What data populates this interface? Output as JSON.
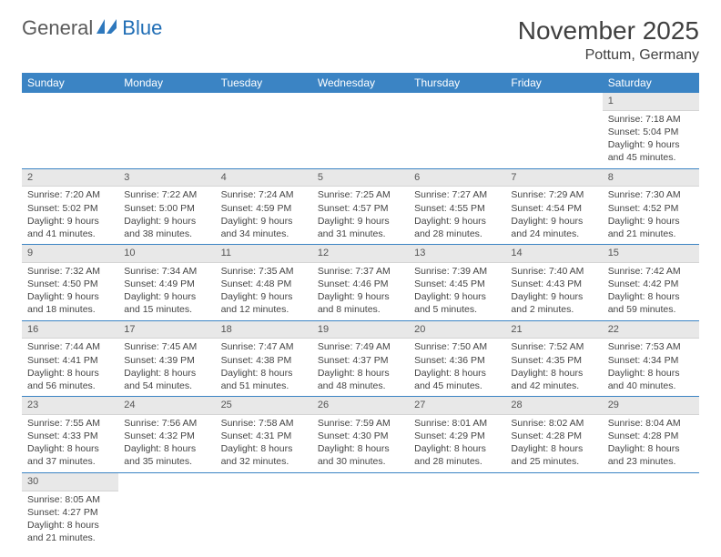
{
  "logo": {
    "general": "General",
    "blue": "Blue"
  },
  "title": "November 2025",
  "location": "Pottum, Germany",
  "colors": {
    "header_bg": "#3b84c4",
    "header_text": "#ffffff",
    "daynum_bg": "#e8e8e8",
    "row_border": "#3b84c4",
    "logo_gray": "#5a5a5a",
    "logo_blue": "#1f6db5"
  },
  "weekdays": [
    "Sunday",
    "Monday",
    "Tuesday",
    "Wednesday",
    "Thursday",
    "Friday",
    "Saturday"
  ],
  "weeks": [
    [
      null,
      null,
      null,
      null,
      null,
      null,
      {
        "n": "1",
        "sr": "Sunrise: 7:18 AM",
        "ss": "Sunset: 5:04 PM",
        "dl": "Daylight: 9 hours and 45 minutes."
      }
    ],
    [
      {
        "n": "2",
        "sr": "Sunrise: 7:20 AM",
        "ss": "Sunset: 5:02 PM",
        "dl": "Daylight: 9 hours and 41 minutes."
      },
      {
        "n": "3",
        "sr": "Sunrise: 7:22 AM",
        "ss": "Sunset: 5:00 PM",
        "dl": "Daylight: 9 hours and 38 minutes."
      },
      {
        "n": "4",
        "sr": "Sunrise: 7:24 AM",
        "ss": "Sunset: 4:59 PM",
        "dl": "Daylight: 9 hours and 34 minutes."
      },
      {
        "n": "5",
        "sr": "Sunrise: 7:25 AM",
        "ss": "Sunset: 4:57 PM",
        "dl": "Daylight: 9 hours and 31 minutes."
      },
      {
        "n": "6",
        "sr": "Sunrise: 7:27 AM",
        "ss": "Sunset: 4:55 PM",
        "dl": "Daylight: 9 hours and 28 minutes."
      },
      {
        "n": "7",
        "sr": "Sunrise: 7:29 AM",
        "ss": "Sunset: 4:54 PM",
        "dl": "Daylight: 9 hours and 24 minutes."
      },
      {
        "n": "8",
        "sr": "Sunrise: 7:30 AM",
        "ss": "Sunset: 4:52 PM",
        "dl": "Daylight: 9 hours and 21 minutes."
      }
    ],
    [
      {
        "n": "9",
        "sr": "Sunrise: 7:32 AM",
        "ss": "Sunset: 4:50 PM",
        "dl": "Daylight: 9 hours and 18 minutes."
      },
      {
        "n": "10",
        "sr": "Sunrise: 7:34 AM",
        "ss": "Sunset: 4:49 PM",
        "dl": "Daylight: 9 hours and 15 minutes."
      },
      {
        "n": "11",
        "sr": "Sunrise: 7:35 AM",
        "ss": "Sunset: 4:48 PM",
        "dl": "Daylight: 9 hours and 12 minutes."
      },
      {
        "n": "12",
        "sr": "Sunrise: 7:37 AM",
        "ss": "Sunset: 4:46 PM",
        "dl": "Daylight: 9 hours and 8 minutes."
      },
      {
        "n": "13",
        "sr": "Sunrise: 7:39 AM",
        "ss": "Sunset: 4:45 PM",
        "dl": "Daylight: 9 hours and 5 minutes."
      },
      {
        "n": "14",
        "sr": "Sunrise: 7:40 AM",
        "ss": "Sunset: 4:43 PM",
        "dl": "Daylight: 9 hours and 2 minutes."
      },
      {
        "n": "15",
        "sr": "Sunrise: 7:42 AM",
        "ss": "Sunset: 4:42 PM",
        "dl": "Daylight: 8 hours and 59 minutes."
      }
    ],
    [
      {
        "n": "16",
        "sr": "Sunrise: 7:44 AM",
        "ss": "Sunset: 4:41 PM",
        "dl": "Daylight: 8 hours and 56 minutes."
      },
      {
        "n": "17",
        "sr": "Sunrise: 7:45 AM",
        "ss": "Sunset: 4:39 PM",
        "dl": "Daylight: 8 hours and 54 minutes."
      },
      {
        "n": "18",
        "sr": "Sunrise: 7:47 AM",
        "ss": "Sunset: 4:38 PM",
        "dl": "Daylight: 8 hours and 51 minutes."
      },
      {
        "n": "19",
        "sr": "Sunrise: 7:49 AM",
        "ss": "Sunset: 4:37 PM",
        "dl": "Daylight: 8 hours and 48 minutes."
      },
      {
        "n": "20",
        "sr": "Sunrise: 7:50 AM",
        "ss": "Sunset: 4:36 PM",
        "dl": "Daylight: 8 hours and 45 minutes."
      },
      {
        "n": "21",
        "sr": "Sunrise: 7:52 AM",
        "ss": "Sunset: 4:35 PM",
        "dl": "Daylight: 8 hours and 42 minutes."
      },
      {
        "n": "22",
        "sr": "Sunrise: 7:53 AM",
        "ss": "Sunset: 4:34 PM",
        "dl": "Daylight: 8 hours and 40 minutes."
      }
    ],
    [
      {
        "n": "23",
        "sr": "Sunrise: 7:55 AM",
        "ss": "Sunset: 4:33 PM",
        "dl": "Daylight: 8 hours and 37 minutes."
      },
      {
        "n": "24",
        "sr": "Sunrise: 7:56 AM",
        "ss": "Sunset: 4:32 PM",
        "dl": "Daylight: 8 hours and 35 minutes."
      },
      {
        "n": "25",
        "sr": "Sunrise: 7:58 AM",
        "ss": "Sunset: 4:31 PM",
        "dl": "Daylight: 8 hours and 32 minutes."
      },
      {
        "n": "26",
        "sr": "Sunrise: 7:59 AM",
        "ss": "Sunset: 4:30 PM",
        "dl": "Daylight: 8 hours and 30 minutes."
      },
      {
        "n": "27",
        "sr": "Sunrise: 8:01 AM",
        "ss": "Sunset: 4:29 PM",
        "dl": "Daylight: 8 hours and 28 minutes."
      },
      {
        "n": "28",
        "sr": "Sunrise: 8:02 AM",
        "ss": "Sunset: 4:28 PM",
        "dl": "Daylight: 8 hours and 25 minutes."
      },
      {
        "n": "29",
        "sr": "Sunrise: 8:04 AM",
        "ss": "Sunset: 4:28 PM",
        "dl": "Daylight: 8 hours and 23 minutes."
      }
    ],
    [
      {
        "n": "30",
        "sr": "Sunrise: 8:05 AM",
        "ss": "Sunset: 4:27 PM",
        "dl": "Daylight: 8 hours and 21 minutes."
      },
      null,
      null,
      null,
      null,
      null,
      null
    ]
  ]
}
